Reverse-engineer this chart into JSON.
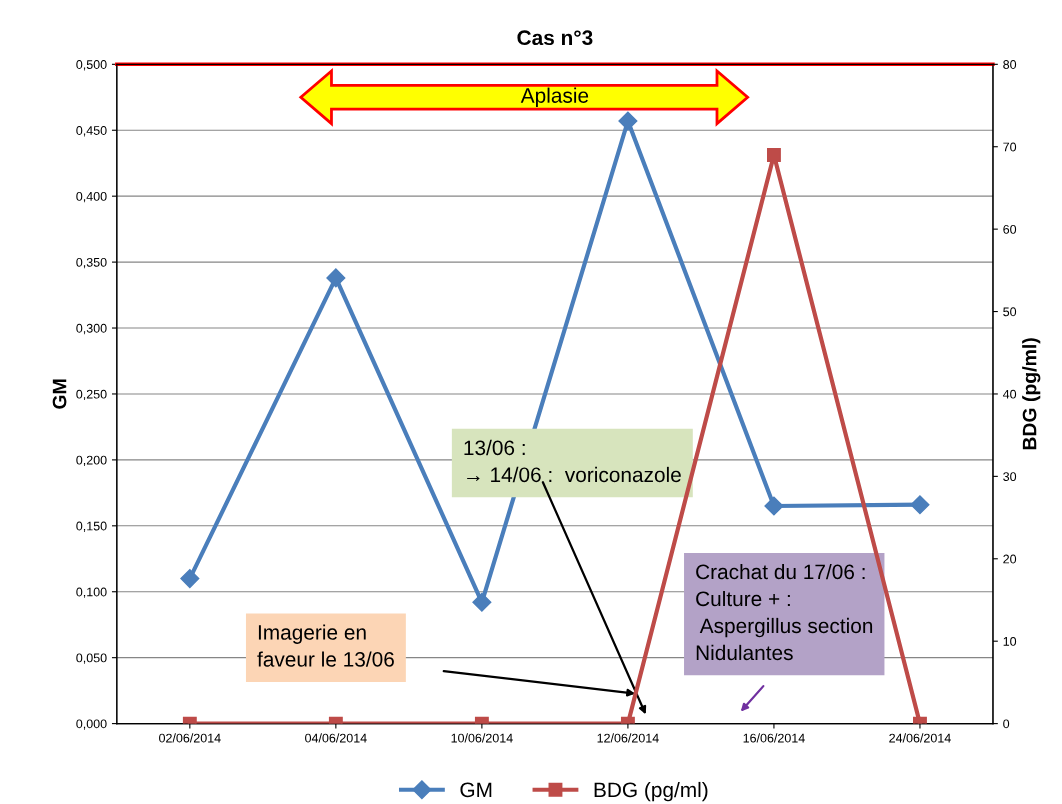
{
  "chart_data": {
    "type": "line",
    "title": "Cas n°3",
    "ylabel": "GM",
    "y2label": "BDG (pg/ml)",
    "categories": [
      "02/06/2014",
      "04/06/2014",
      "10/06/2014",
      "12/06/2014",
      "16/06/2014",
      "24/06/2014"
    ],
    "series": [
      {
        "name": "GM",
        "color": "#4a7ebb",
        "marker": "diamond",
        "values": [
          0.11,
          0.338,
          0.092,
          0.457,
          0.165,
          0.166
        ]
      },
      {
        "name": "BDG (pg/ml)",
        "color": "#be4b48",
        "marker": "square",
        "axis": "y2",
        "values": [
          0,
          0,
          0,
          0,
          69,
          0
        ]
      }
    ],
    "ylim": [
      0,
      0.5
    ],
    "yticks": [
      {
        "value": 0,
        "label": "0,000"
      },
      {
        "value": 0.05,
        "label": "0,050"
      },
      {
        "value": 0.1,
        "label": "0,100"
      },
      {
        "value": 0.15,
        "label": "0,150"
      },
      {
        "value": 0.2,
        "label": "0,200"
      },
      {
        "value": 0.25,
        "label": "0,250"
      },
      {
        "value": 0.3,
        "label": "0,300"
      },
      {
        "value": 0.35,
        "label": "0,350"
      },
      {
        "value": 0.4,
        "label": "0,400"
      },
      {
        "value": 0.45,
        "label": "0,450"
      },
      {
        "value": 0.5,
        "label": "0,500"
      }
    ],
    "y2lim": [
      0,
      80
    ],
    "y2ticks": [
      0,
      10,
      20,
      30,
      40,
      50,
      60,
      70,
      80
    ],
    "ref_lines": [
      {
        "axis": "y",
        "value": 0.5,
        "color": "#ff0000"
      }
    ],
    "annotations": [
      "Aplasie",
      "13/06 :\n→ 14/06 :  voriconazole",
      "Imagerie en\nfaveur le 13/06",
      "Crachat du 17/06 :\nCulture + :\n Aspergillus section\nNidulantes"
    ],
    "grid": "y",
    "legend": "bottom",
    "line_style": "solid"
  }
}
